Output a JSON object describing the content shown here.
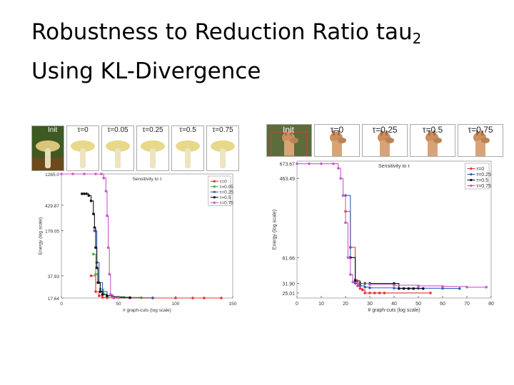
{
  "title_line1": "Robustness to Reduction Ratio tau",
  "title_sub": "2",
  "title_line2": "Using KL-Divergence",
  "left_strip": [
    "Init",
    "τ=0",
    "τ=0.05",
    "τ=0.25",
    "τ=0.5",
    "τ=0.75"
  ],
  "right_strip": [
    "Init",
    "τ=0",
    "τ=0.25",
    "τ=0.5",
    "τ=0.75"
  ],
  "colors": {
    "s0": "#e8343c",
    "s005": "#3fb03f",
    "s025": "#2f5fb8",
    "s05": "#111111",
    "s075": "#c55ac8"
  },
  "chart_data": [
    {
      "type": "line",
      "title": "Sensitivity to τ",
      "xlabel": "# graph-cuts (log scale)",
      "ylabel": "Energy (log scale)",
      "xlim": [
        0,
        150
      ],
      "x_ticks": [
        "0",
        "50",
        "100",
        "150"
      ],
      "x_tick_values": [
        0,
        50,
        100,
        150
      ],
      "y_ticks": [
        "1265.0",
        "429.87",
        "179.05",
        "37.93",
        "17.64"
      ],
      "y_tick_values": [
        1265.0,
        429.87,
        179.05,
        37.93,
        17.64
      ],
      "ylim_display": [
        1265.0,
        17.64
      ],
      "legend_position": "top-right",
      "series": [
        {
          "name": "τ=0",
          "color": "#e8343c",
          "x": [
            26,
            30,
            33,
            36,
            40,
            46,
            60,
            80,
            100,
            115,
            125,
            140
          ],
          "y": [
            37.93,
            22,
            19,
            18,
            17.8,
            17.7,
            17.64,
            17.64,
            17.64,
            17.64,
            17.64,
            17.64
          ]
        },
        {
          "name": "τ=0.05",
          "color": "#3fb03f",
          "x": [
            28,
            30,
            32,
            34,
            37,
            40,
            45,
            55,
            70
          ],
          "y": [
            80,
            40,
            30,
            24,
            20,
            19,
            18.5,
            18,
            17.8
          ]
        },
        {
          "name": "τ=0.25",
          "color": "#2f5fb8",
          "x": [
            29,
            31,
            33,
            36,
            40,
            45,
            50,
            60,
            80
          ],
          "y": [
            179.05,
            60,
            30,
            22,
            19,
            18.5,
            18,
            17.8,
            17.7
          ]
        },
        {
          "name": "τ=0.5",
          "color": "#111111",
          "x": [
            18,
            20,
            22,
            24,
            26,
            28,
            29,
            30,
            31,
            32,
            34,
            36,
            40,
            45,
            50,
            60
          ],
          "y": [
            640,
            640,
            640,
            600,
            500,
            320,
            200,
            100,
            50,
            30,
            22,
            20,
            19,
            18.5,
            18,
            17.9
          ]
        },
        {
          "name": "τ=0.75",
          "color": "#c55ac8",
          "x": [
            0,
            10,
            20,
            30,
            35,
            37,
            39,
            40,
            41,
            42,
            43,
            45,
            50
          ],
          "y": [
            1265.0,
            1265.0,
            1265.0,
            1265.0,
            1265.0,
            1100,
            700,
            300,
            100,
            40,
            20,
            18,
            17.8
          ]
        }
      ]
    },
    {
      "type": "line",
      "title": "Sensitivity to τ",
      "xlabel": "# graph-cuts (log scale)",
      "ylabel": "Energy (log scale)",
      "xlim": [
        0,
        80
      ],
      "x_ticks": [
        "0",
        "10",
        "20",
        "30",
        "40",
        "50",
        "60",
        "70",
        "80"
      ],
      "x_tick_values": [
        0,
        10,
        20,
        30,
        40,
        50,
        60,
        70,
        80
      ],
      "y_ticks": [
        "673.67",
        "463.49",
        "61.66",
        "31.90",
        "25.01"
      ],
      "y_tick_values": [
        673.67,
        463.49,
        61.66,
        31.9,
        25.01
      ],
      "ylim_display": [
        720,
        22
      ],
      "legend_position": "top-right",
      "series": [
        {
          "name": "τ=0",
          "color": "#e8343c",
          "x": [
            20,
            22,
            24,
            25,
            26,
            27,
            28,
            30,
            32,
            34,
            36,
            55
          ],
          "y": [
            200,
            80,
            35,
            30,
            28,
            27,
            25.01,
            25.01,
            25.01,
            25.01,
            25.01,
            25.01
          ]
        },
        {
          "name": "τ=0.25",
          "color": "#2f5fb8",
          "x": [
            20,
            22,
            24,
            26,
            28,
            30,
            40,
            50,
            60,
            67
          ],
          "y": [
            300,
            61.66,
            32,
            30,
            29,
            28.5,
            28.3,
            28.2,
            28.1,
            28.0
          ]
        },
        {
          "name": "τ=0.5",
          "color": "#111111",
          "x": [
            22,
            24,
            26,
            28,
            30,
            40,
            42,
            44,
            46,
            48,
            52
          ],
          "y": [
            61.66,
            34,
            31.9,
            31.9,
            31.9,
            31.9,
            28,
            28,
            28,
            28,
            28
          ]
        },
        {
          "name": "τ=0.75",
          "color": "#c55ac8",
          "x": [
            0,
            5,
            10,
            15,
            17,
            18,
            19,
            20,
            21,
            22,
            23,
            25,
            30,
            40,
            50,
            60,
            70,
            78
          ],
          "y": [
            673.67,
            673.67,
            673.67,
            673.67,
            600,
            463.49,
            300,
            150,
            61.66,
            40,
            33,
            31.9,
            31,
            30.5,
            30,
            29.5,
            29,
            29
          ]
        }
      ]
    }
  ]
}
